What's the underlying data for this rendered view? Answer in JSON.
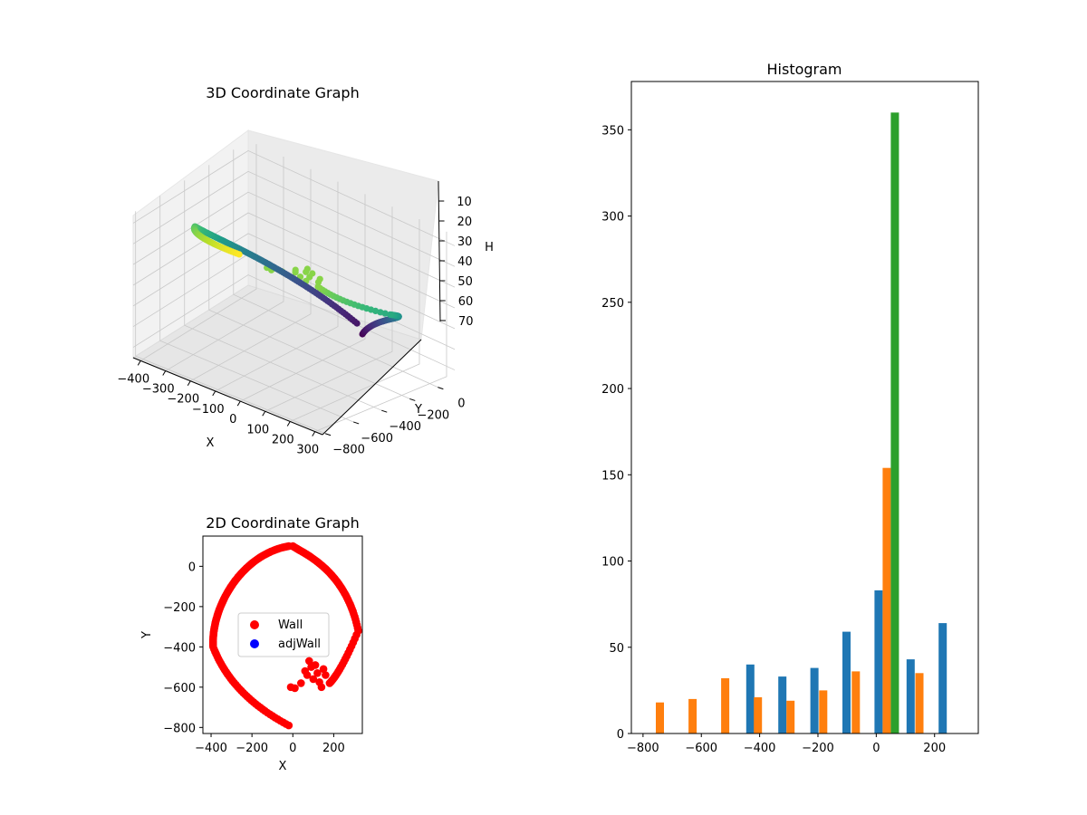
{
  "chart_data": [
    {
      "type": "scatter3d",
      "title": "3D Coordinate Graph",
      "xlabel": "X",
      "ylabel": "Y",
      "zlabel": "H",
      "x_ticks": [
        -400,
        -300,
        -200,
        -100,
        0,
        100,
        200,
        300
      ],
      "y_ticks": [
        0,
        -200,
        -400,
        -600,
        -800
      ],
      "z_ticks": [
        10,
        20,
        30,
        40,
        50,
        60,
        70
      ],
      "x_tick_labels": [
        "−400",
        "−300",
        "−200",
        "−100",
        "0",
        "100",
        "200",
        "300"
      ],
      "y_tick_labels": [
        "0",
        "−200",
        "−400",
        "−600",
        "−800"
      ],
      "z_tick_labels": [
        "10",
        "20",
        "30",
        "40",
        "50",
        "60",
        "70"
      ],
      "xlim": [
        -430,
        330
      ],
      "ylim": [
        -820,
        120
      ],
      "zlim": [
        5,
        75
      ],
      "colormap": "viridis",
      "grid": true
    },
    {
      "type": "scatter",
      "title": "2D Coordinate Graph",
      "xlabel": "X",
      "ylabel": "Y",
      "xlim": [
        -440,
        340
      ],
      "ylim": [
        -830,
        150
      ],
      "x_ticks": [
        -400,
        -200,
        0,
        200
      ],
      "y_ticks": [
        0,
        -200,
        -400,
        -600,
        -800
      ],
      "x_tick_labels": [
        "−400",
        "−200",
        "0",
        "200"
      ],
      "y_tick_labels": [
        "0",
        "−200",
        "−400",
        "−600",
        "−800"
      ],
      "legend": {
        "placement": "center",
        "entries": [
          {
            "name": "Wall",
            "color": "#ff0000"
          },
          {
            "name": "adjWall",
            "color": "#0000ff"
          }
        ]
      },
      "series": [
        {
          "name": "Wall",
          "color": "#ff0000",
          "shape": "spiral-with-inner-cluster"
        },
        {
          "name": "adjWall",
          "color": "#0000ff",
          "points": []
        }
      ]
    },
    {
      "type": "bar",
      "title": "Histogram",
      "xlim": [
        -840,
        350
      ],
      "ylim": [
        0,
        378
      ],
      "x_ticks": [
        -800,
        -600,
        -400,
        -200,
        0,
        200
      ],
      "y_ticks": [
        0,
        50,
        100,
        150,
        200,
        250,
        300,
        350
      ],
      "x_tick_labels": [
        "−800",
        "−600",
        "−400",
        "−200",
        "0",
        "200"
      ],
      "y_tick_labels": [
        "0",
        "50",
        "100",
        "150",
        "200",
        "250",
        "300",
        "350"
      ],
      "bar_width": 28,
      "series": [
        {
          "color": "#1f77b4",
          "points": [
            {
              "x": -432,
              "y": 40
            },
            {
              "x": -322,
              "y": 33
            },
            {
              "x": -212,
              "y": 38
            },
            {
              "x": -102,
              "y": 59
            },
            {
              "x": 8,
              "y": 83
            },
            {
              "x": 118,
              "y": 43
            },
            {
              "x": 228,
              "y": 64
            }
          ]
        },
        {
          "color": "#ff7f0e",
          "points": [
            {
              "x": -742,
              "y": 18
            },
            {
              "x": -630,
              "y": 20
            },
            {
              "x": -518,
              "y": 32
            },
            {
              "x": -406,
              "y": 21
            },
            {
              "x": -294,
              "y": 19
            },
            {
              "x": -182,
              "y": 25
            },
            {
              "x": -70,
              "y": 36
            },
            {
              "x": 36,
              "y": 154
            },
            {
              "x": 148,
              "y": 35
            }
          ]
        },
        {
          "color": "#2ca02c",
          "points": [
            {
              "x": 64,
              "y": 360
            }
          ]
        }
      ]
    }
  ]
}
